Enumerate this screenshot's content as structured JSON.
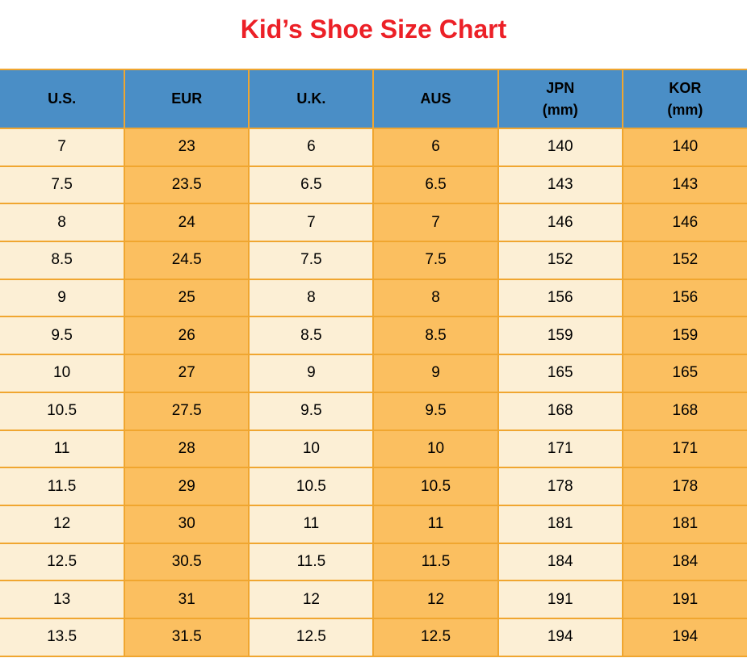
{
  "colors": {
    "page-bg": "#ffffff",
    "title": "#ec2027",
    "header-bg": "#4a8ec6",
    "col-light": "#fcefd5",
    "col-orange": "#fbbf60",
    "border": "#f0a630",
    "text": "#000000"
  },
  "chart_data": {
    "type": "table",
    "title": "Kid’s Shoe Size Chart",
    "columns": [
      {
        "label": "U.S.",
        "sublabel": ""
      },
      {
        "label": "EUR",
        "sublabel": ""
      },
      {
        "label": "U.K.",
        "sublabel": ""
      },
      {
        "label": "AUS",
        "sublabel": ""
      },
      {
        "label": "JPN",
        "sublabel": "(mm)"
      },
      {
        "label": "KOR",
        "sublabel": "(mm)"
      }
    ],
    "rows": [
      [
        "7",
        "23",
        "6",
        "6",
        "140",
        "140"
      ],
      [
        "7.5",
        "23.5",
        "6.5",
        "6.5",
        "143",
        "143"
      ],
      [
        "8",
        "24",
        "7",
        "7",
        "146",
        "146"
      ],
      [
        "8.5",
        "24.5",
        "7.5",
        "7.5",
        "152",
        "152"
      ],
      [
        "9",
        "25",
        "8",
        "8",
        "156",
        "156"
      ],
      [
        "9.5",
        "26",
        "8.5",
        "8.5",
        "159",
        "159"
      ],
      [
        "10",
        "27",
        "9",
        "9",
        "165",
        "165"
      ],
      [
        "10.5",
        "27.5",
        "9.5",
        "9.5",
        "168",
        "168"
      ],
      [
        "11",
        "28",
        "10",
        "10",
        "171",
        "171"
      ],
      [
        "11.5",
        "29",
        "10.5",
        "10.5",
        "178",
        "178"
      ],
      [
        "12",
        "30",
        "11",
        "11",
        "181",
        "181"
      ],
      [
        "12.5",
        "30.5",
        "11.5",
        "11.5",
        "184",
        "184"
      ],
      [
        "13",
        "31",
        "12",
        "12",
        "191",
        "191"
      ],
      [
        "13.5",
        "31.5",
        "12.5",
        "12.5",
        "194",
        "194"
      ]
    ]
  }
}
